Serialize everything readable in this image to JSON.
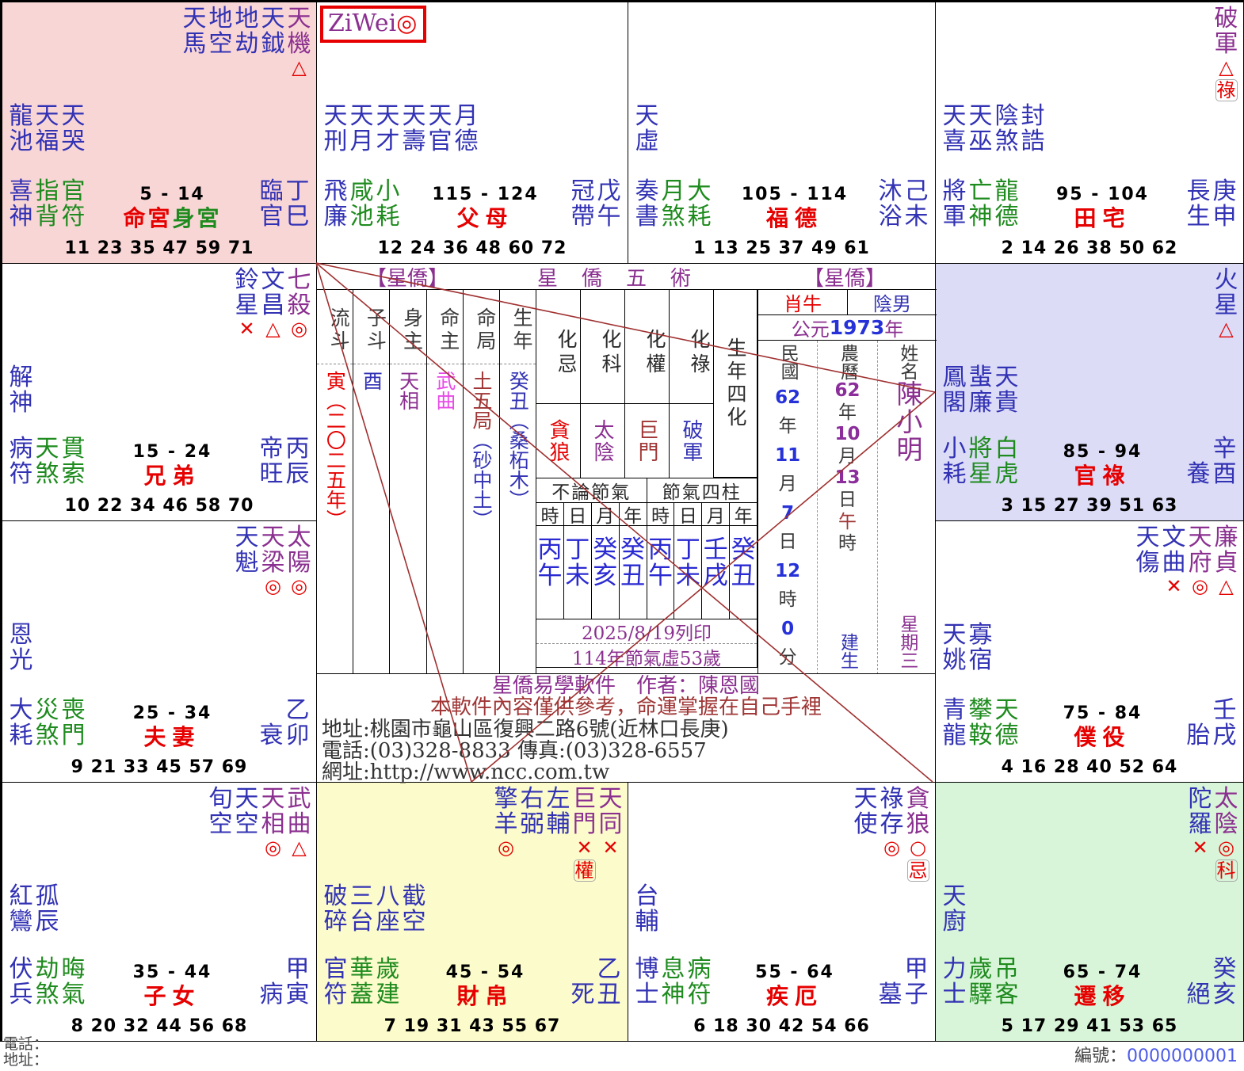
{
  "palaces": [
    {
      "id": "si",
      "main_stars": [
        {
          "chars": "天馬",
          "c": "blue"
        },
        {
          "chars": "地空",
          "c": "blue"
        },
        {
          "chars": "地劫",
          "c": "blue"
        },
        {
          "chars": "天鉞",
          "c": "blue"
        },
        {
          "chars": "天機",
          "c": "purple",
          "sym": "△"
        }
      ],
      "minor_stars": [
        "龍池",
        "天福",
        "天哭"
      ],
      "attendants": [
        {
          "t": "喜神",
          "c": "blue"
        },
        {
          "t": "指背",
          "c": "green"
        },
        {
          "t": "官符",
          "c": "green"
        }
      ],
      "age_range": "5 - 14",
      "names": [
        {
          "t": "命宮",
          "c": "red"
        },
        {
          "t": "身宮",
          "c": "green"
        }
      ],
      "stage": "臨官",
      "stem_branch": "丁巳",
      "ages": "11 23 35 47 59 71"
    },
    {
      "id": "wu",
      "ziwei_box": {
        "text": "ZiWei",
        "sym": "◎"
      },
      "main_stars": [],
      "minor_stars": [
        "天刑",
        "天月",
        "天才",
        "天壽",
        "天官",
        "月德"
      ],
      "attendants": [
        {
          "t": "飛廉",
          "c": "blue"
        },
        {
          "t": "咸池",
          "c": "green"
        },
        {
          "t": "小耗",
          "c": "green"
        }
      ],
      "age_range": "115 - 124",
      "names": [
        {
          "t": "父母",
          "c": "red"
        }
      ],
      "stage": "冠帶",
      "stem_branch": "戊午",
      "ages": "12 24 36 48 60 72"
    },
    {
      "id": "wei",
      "main_stars": [],
      "minor_stars": [
        "天虛"
      ],
      "attendants": [
        {
          "t": "奏書",
          "c": "blue"
        },
        {
          "t": "月煞",
          "c": "green"
        },
        {
          "t": "大耗",
          "c": "green"
        }
      ],
      "age_range": "105 - 114",
      "names": [
        {
          "t": "福德",
          "c": "red"
        }
      ],
      "stage": "沐浴",
      "stem_branch": "己未",
      "ages": "1 13 25 37 49 61"
    },
    {
      "id": "shen",
      "main_stars": [
        {
          "chars": "破軍",
          "c": "purple",
          "sym": "△",
          "hua": "祿"
        }
      ],
      "minor_stars": [
        "天喜",
        "天巫",
        "陰煞",
        "封誥"
      ],
      "attendants": [
        {
          "t": "將軍",
          "c": "blue"
        },
        {
          "t": "亡神",
          "c": "green"
        },
        {
          "t": "龍德",
          "c": "green"
        }
      ],
      "age_range": "95 - 104",
      "names": [
        {
          "t": "田宅",
          "c": "red"
        }
      ],
      "stage": "長生",
      "stem_branch": "庚申",
      "ages": "2 14 26 38 50 62"
    },
    {
      "id": "chen",
      "main_stars": [
        {
          "chars": "鈴星",
          "c": "blue",
          "sym": "✕"
        },
        {
          "chars": "文昌",
          "c": "blue",
          "sym": "△"
        },
        {
          "chars": "七殺",
          "c": "purple",
          "sym": "◎"
        }
      ],
      "minor_stars": [
        "解神"
      ],
      "attendants": [
        {
          "t": "病符",
          "c": "blue"
        },
        {
          "t": "天煞",
          "c": "green"
        },
        {
          "t": "貫索",
          "c": "green"
        }
      ],
      "age_range": "15 - 24",
      "names": [
        {
          "t": "兄弟",
          "c": "red"
        }
      ],
      "stage": "帝旺",
      "stem_branch": "丙辰",
      "ages": "10 22 34 46 58 70"
    },
    {
      "id": "you",
      "main_stars": [
        {
          "chars": "火星",
          "c": "blue",
          "sym": "△"
        }
      ],
      "minor_stars": [
        "鳳閣",
        "蜚廉",
        "天貴"
      ],
      "attendants": [
        {
          "t": "小耗",
          "c": "blue"
        },
        {
          "t": "將星",
          "c": "green"
        },
        {
          "t": "白虎",
          "c": "green"
        }
      ],
      "age_range": "85 - 94",
      "names": [
        {
          "t": "官祿",
          "c": "red"
        }
      ],
      "stage": "養",
      "stem_branch": "辛酉",
      "ages": "3 15 27 39 51 63"
    },
    {
      "id": "mao",
      "main_stars": [
        {
          "chars": "天魁",
          "c": "blue"
        },
        {
          "chars": "天梁",
          "c": "purple",
          "sym": "◎"
        },
        {
          "chars": "太陽",
          "c": "purple",
          "sym": "◎"
        }
      ],
      "minor_stars": [
        "恩光"
      ],
      "attendants": [
        {
          "t": "大耗",
          "c": "blue"
        },
        {
          "t": "災煞",
          "c": "green"
        },
        {
          "t": "喪門",
          "c": "green"
        }
      ],
      "age_range": "25 - 34",
      "names": [
        {
          "t": "夫妻",
          "c": "red"
        }
      ],
      "stage": "衰",
      "stem_branch": "乙卯",
      "ages": "9 21 33 45 57 69"
    },
    {
      "id": "xu",
      "main_stars": [
        {
          "chars": "天傷",
          "c": "blue"
        },
        {
          "chars": "文曲",
          "c": "blue",
          "sym": "✕"
        },
        {
          "chars": "天府",
          "c": "purple",
          "sym": "◎"
        },
        {
          "chars": "廉貞",
          "c": "purple",
          "sym": "△"
        }
      ],
      "minor_stars": [
        "天姚",
        "寡宿"
      ],
      "attendants": [
        {
          "t": "青龍",
          "c": "blue"
        },
        {
          "t": "攀鞍",
          "c": "green"
        },
        {
          "t": "天德",
          "c": "green"
        }
      ],
      "age_range": "75 - 84",
      "names": [
        {
          "t": "僕役",
          "c": "red"
        }
      ],
      "stage": "胎",
      "stem_branch": "壬戌",
      "ages": "4 16 28 40 52 64"
    },
    {
      "id": "yin",
      "main_stars": [
        {
          "chars": "旬空",
          "c": "blue"
        },
        {
          "chars": "天空",
          "c": "blue"
        },
        {
          "chars": "天相",
          "c": "purple",
          "sym": "◎"
        },
        {
          "chars": "武曲",
          "c": "purple",
          "sym": "△"
        }
      ],
      "minor_stars": [
        "紅鸞",
        "孤辰"
      ],
      "attendants": [
        {
          "t": "伏兵",
          "c": "blue"
        },
        {
          "t": "劫煞",
          "c": "green"
        },
        {
          "t": "晦氣",
          "c": "green"
        }
      ],
      "age_range": "35 - 44",
      "names": [
        {
          "t": "子女",
          "c": "red"
        }
      ],
      "stage": "病",
      "stem_branch": "甲寅",
      "ages": "8 20 32 44 56 68"
    },
    {
      "id": "chou",
      "main_stars": [
        {
          "chars": "擎羊",
          "c": "blue",
          "sym": "◎"
        },
        {
          "chars": "右弼",
          "c": "blue"
        },
        {
          "chars": "左輔",
          "c": "blue"
        },
        {
          "chars": "巨門",
          "c": "purple",
          "sym": "✕",
          "hua": "權"
        },
        {
          "chars": "天同",
          "c": "purple",
          "sym": "✕"
        }
      ],
      "minor_stars": [
        "破碎",
        "三台",
        "八座",
        "截空"
      ],
      "attendants": [
        {
          "t": "官符",
          "c": "blue"
        },
        {
          "t": "華蓋",
          "c": "green"
        },
        {
          "t": "歲建",
          "c": "green"
        }
      ],
      "age_range": "45 - 54",
      "names": [
        {
          "t": "財帛",
          "c": "red"
        }
      ],
      "stage": "死",
      "stem_branch": "乙丑",
      "ages": "7 19 31 43 55 67"
    },
    {
      "id": "zi",
      "main_stars": [
        {
          "chars": "天使",
          "c": "blue"
        },
        {
          "chars": "祿存",
          "c": "blue",
          "sym": "◎"
        },
        {
          "chars": "貪狼",
          "c": "purple",
          "sym": "○",
          "hua": "忌"
        }
      ],
      "minor_stars": [
        "台輔"
      ],
      "attendants": [
        {
          "t": "博士",
          "c": "blue"
        },
        {
          "t": "息神",
          "c": "green"
        },
        {
          "t": "病符",
          "c": "green"
        }
      ],
      "age_range": "55 - 64",
      "names": [
        {
          "t": "疾厄",
          "c": "red"
        }
      ],
      "stage": "墓",
      "stem_branch": "甲子",
      "ages": "6 18 30 42 54 66"
    },
    {
      "id": "hai",
      "main_stars": [
        {
          "chars": "陀羅",
          "c": "blue",
          "sym": "✕"
        },
        {
          "chars": "太陰",
          "c": "purple",
          "sym": "◎",
          "hua": "科"
        }
      ],
      "minor_stars": [
        "天廚"
      ],
      "attendants": [
        {
          "t": "力士",
          "c": "blue"
        },
        {
          "t": "歲驛",
          "c": "green"
        },
        {
          "t": "吊客",
          "c": "green"
        }
      ],
      "age_range": "65 - 74",
      "names": [
        {
          "t": "遷移",
          "c": "red"
        }
      ],
      "stage": "絕",
      "stem_branch": "癸亥",
      "ages": "5 17 29 41 53 65"
    }
  ],
  "center": {
    "header": {
      "left": "【星僑】",
      "middle": "星僑五術",
      "right": "【星僑】"
    },
    "star_table": [
      {
        "header": "流斗",
        "parts": [
          {
            "t": "寅（二〇二五年）",
            "c": "red"
          }
        ]
      },
      {
        "header": "子斗",
        "parts": [
          {
            "t": "酉",
            "c": "blue"
          }
        ]
      },
      {
        "header": "身主",
        "parts": [
          {
            "t": "天相",
            "c": "purple"
          }
        ]
      },
      {
        "header": "命主",
        "parts": [
          {
            "t": "武曲",
            "c": "magenta"
          }
        ]
      },
      {
        "header": "命局",
        "parts": [
          {
            "t": "土五局",
            "c": "maroon"
          },
          {
            "t": "（砂中土）",
            "c": "blue"
          }
        ]
      },
      {
        "header": "生年",
        "parts": [
          {
            "t": "癸丑（桑柘木）",
            "c": "blue"
          }
        ]
      }
    ],
    "transforms": {
      "labels": [
        "化忌",
        "化科",
        "化權",
        "化祿"
      ],
      "values": [
        {
          "t": "貪狼",
          "c": "red"
        },
        {
          "t": "太陰",
          "c": "purple"
        },
        {
          "t": "巨門",
          "c": "maroon"
        },
        {
          "t": "破軍",
          "c": "blue"
        }
      ],
      "side_label": "生年四化"
    },
    "pillars": {
      "group_headers": [
        "不論節氣",
        "節氣四柱"
      ],
      "sub_headers": [
        "時",
        "日",
        "月",
        "年",
        "時",
        "日",
        "月",
        "年"
      ],
      "cells": [
        "丙午",
        "丁未",
        "癸亥",
        "癸丑",
        "丙午",
        "丁未",
        "壬戌",
        "癸丑"
      ],
      "print_date": "2025/8/19列印",
      "age_note": "114年節氣虛53歲"
    },
    "info": {
      "zodiac": "肖牛",
      "sex": "陰男",
      "year_prefix": "公元",
      "year": "1973",
      "year_suffix": "年",
      "date_cols": [
        {
          "header": "民國",
          "items": [
            {
              "t": "62",
              "c": "blueb"
            },
            {
              "t": "年",
              "c": "gray"
            },
            {
              "t": "11",
              "c": "blueb"
            },
            {
              "t": "月",
              "c": "gray"
            },
            {
              "t": "7",
              "c": "blueb"
            },
            {
              "t": "日",
              "c": "gray"
            },
            {
              "t": "12",
              "c": "blueb"
            },
            {
              "t": "時",
              "c": "gray"
            },
            {
              "t": "0",
              "c": "blueb"
            },
            {
              "t": "分",
              "c": "gray"
            }
          ]
        },
        {
          "header": "農曆",
          "items": [
            {
              "t": "62",
              "c": "purpleb"
            },
            {
              "t": "年",
              "c": "gray"
            },
            {
              "t": "10",
              "c": "purpleb"
            },
            {
              "t": "月",
              "c": "gray"
            },
            {
              "t": "13",
              "c": "purpleb"
            },
            {
              "t": "日",
              "c": "gray"
            },
            {
              "t": "午",
              "c": "maroon"
            },
            {
              "t": "時",
              "c": "gray"
            }
          ],
          "bottom": {
            "t": "建生",
            "c": "blue"
          }
        },
        {
          "header": "姓名",
          "name": "陳小明",
          "bottom": {
            "t": "星期三",
            "c": "purple"
          }
        }
      ]
    },
    "footer": {
      "line1": "星僑易學軟件　作者：陳恩國",
      "line2": "本軟件內容僅供參考，命運掌握在自己手裡",
      "line3": "地址:桃園市龜山區復興二路6號(近林口長庚)",
      "line4": "電話:(03)328-8833 傳真:(03)328-6557",
      "line5": "網址:http://www.ncc.com.tw"
    }
  },
  "page_footer": {
    "phone_label": "電話：",
    "address_label": "地址：",
    "serial_label": "編號：",
    "serial_value": "0000000001"
  },
  "accent_colors": {
    "star_blue": "#3232b4",
    "star_purple": "#8b3090",
    "attendant_green": "#1e8b1e",
    "palace_red": "#e60000",
    "line_red": "#a03030"
  }
}
